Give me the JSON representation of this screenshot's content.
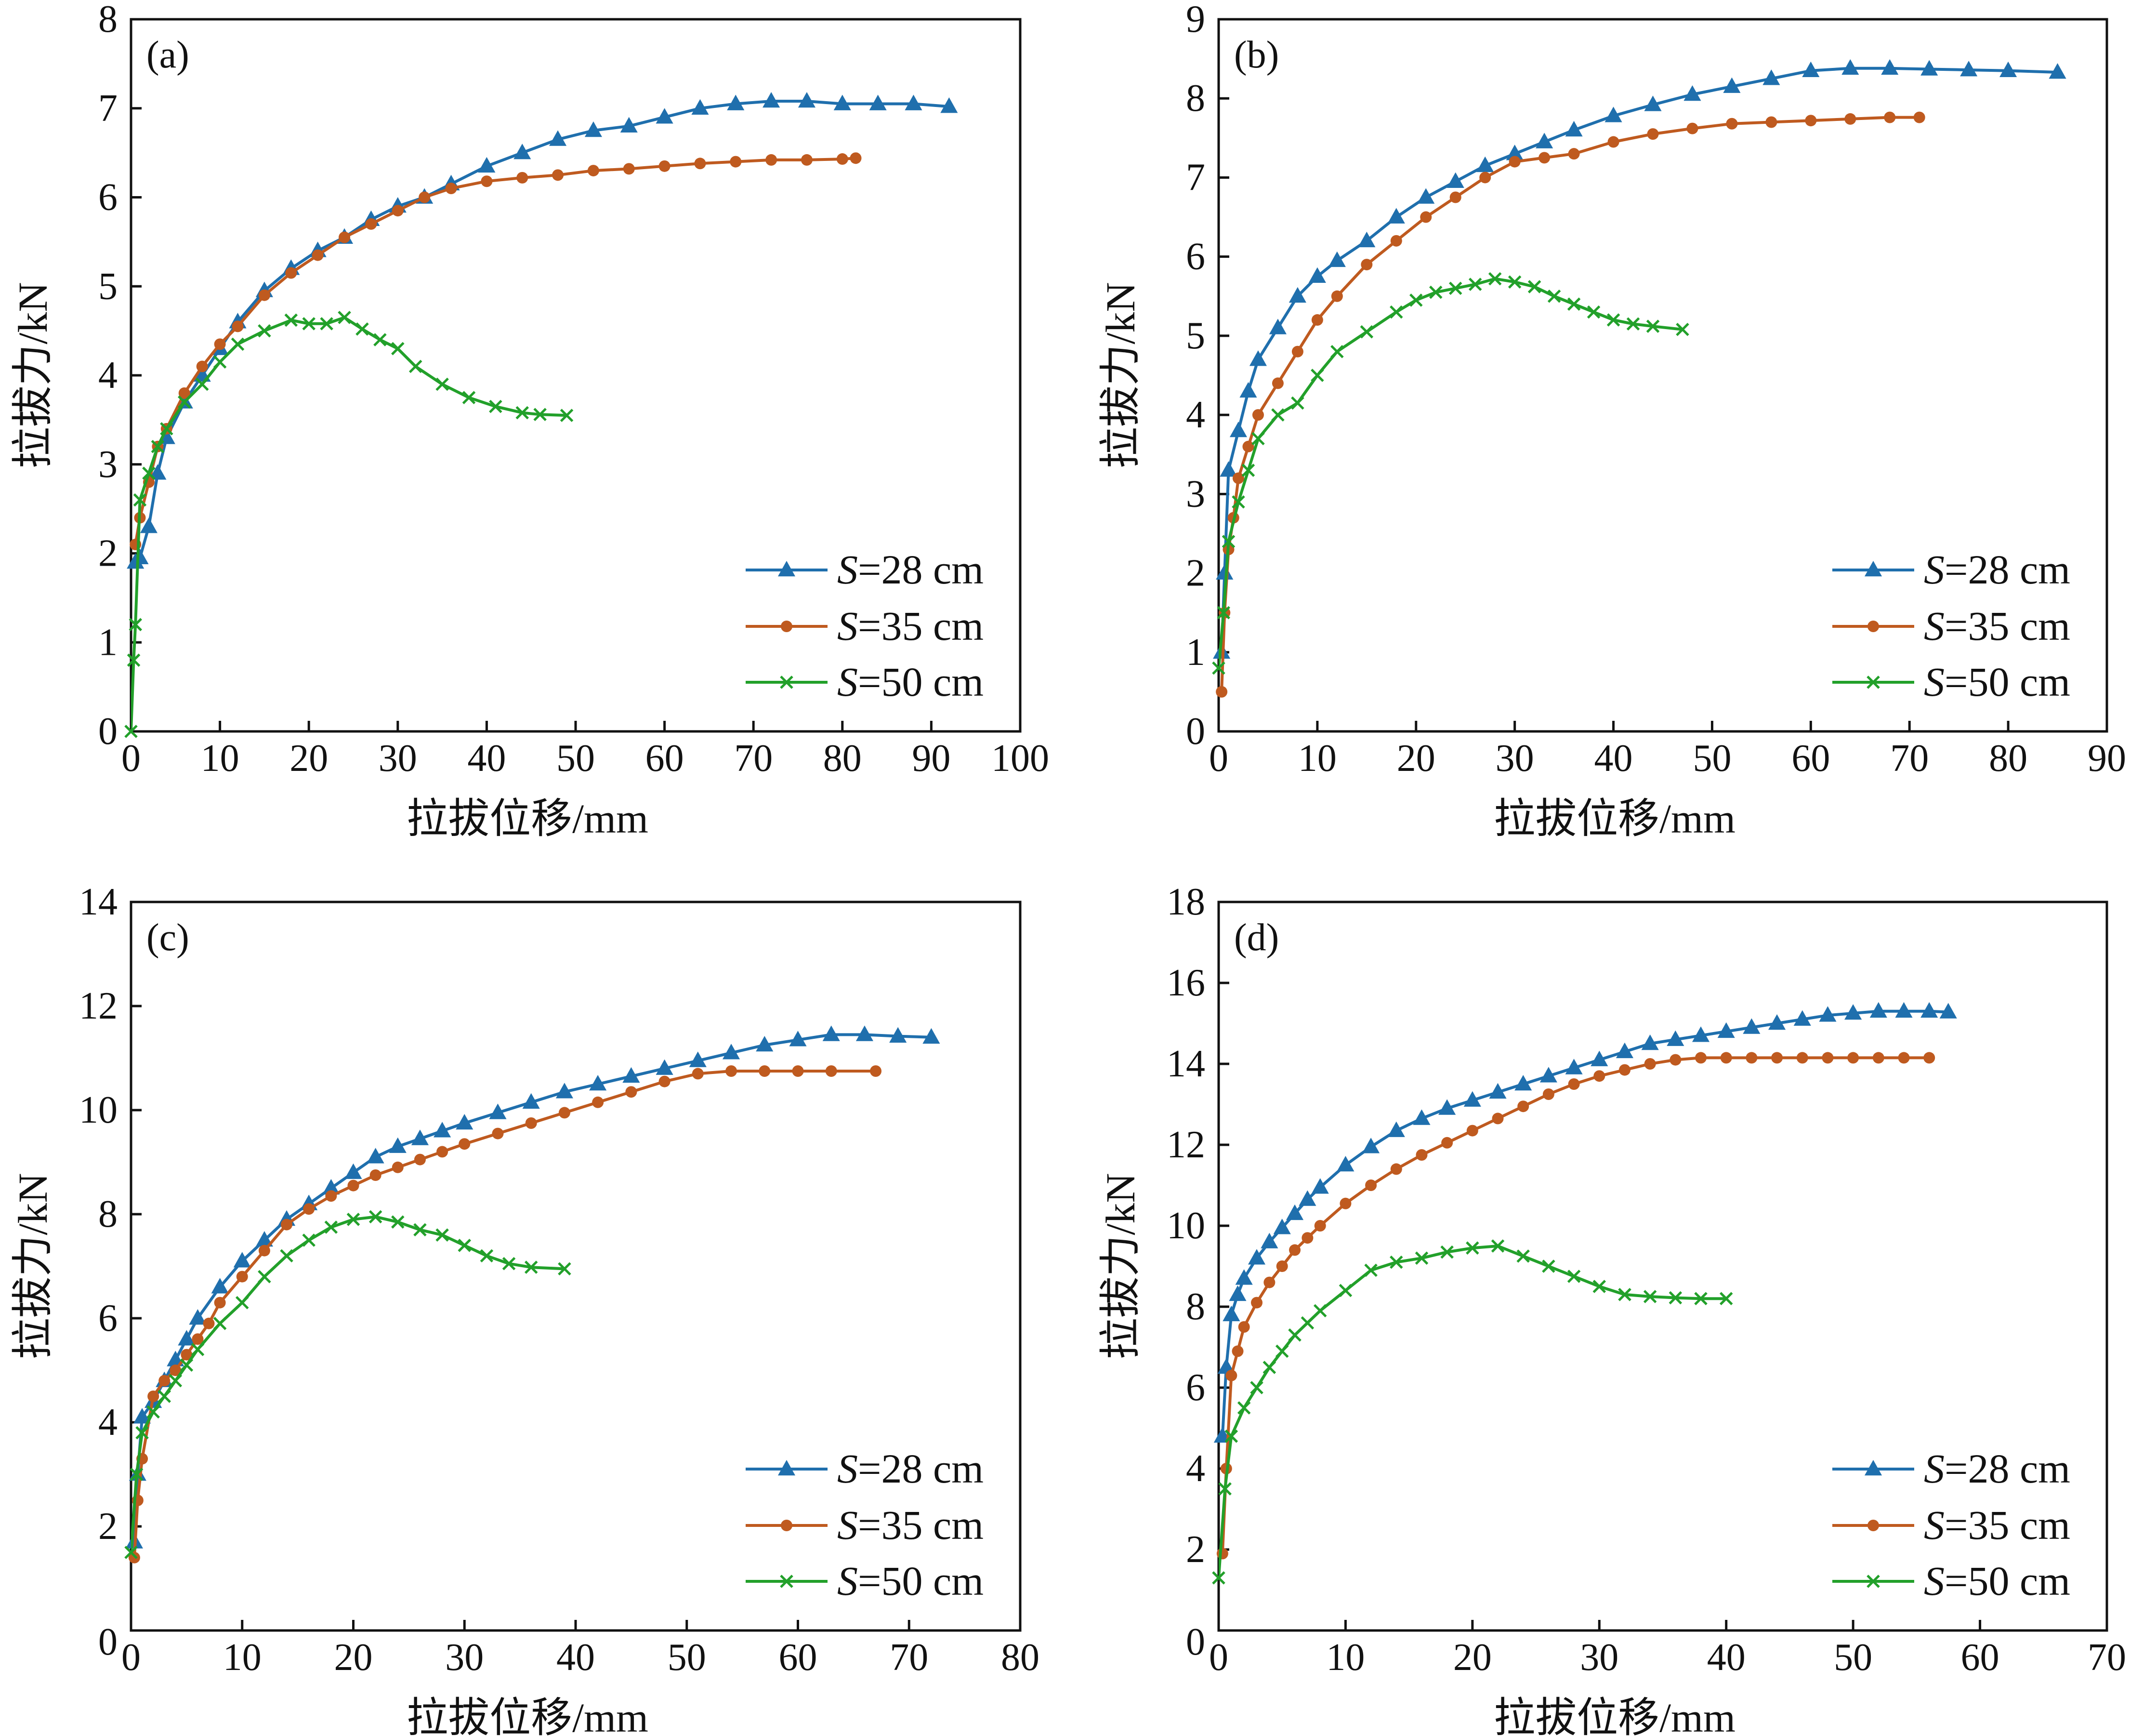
{
  "figure": {
    "colors": {
      "s28": "#1f6fad",
      "s35": "#bf5a1f",
      "s50": "#22a02a",
      "axis": "#111111"
    },
    "legend_prefix": "S",
    "marker_map": {
      "s28": "triangle-icon",
      "s35": "circle-icon",
      "s50": "cross-icon"
    }
  },
  "chart_data": [
    {
      "type": "line",
      "panel_label": "(a)",
      "xlabel": "拉拔位移/mm",
      "ylabel": "拉拔力/kN",
      "xlim": [
        0,
        100
      ],
      "ylim": [
        0,
        8
      ],
      "xticks": [
        0,
        10,
        20,
        30,
        40,
        50,
        60,
        70,
        80,
        90,
        100
      ],
      "yticks": [
        0,
        1,
        2,
        3,
        4,
        5,
        6,
        7,
        8
      ],
      "legend_position": "bottom-right",
      "series": [
        {
          "key": "s28",
          "name": "S=28 cm",
          "legend_value": "=28 cm",
          "marker": "triangle",
          "x": [
            0.5,
            1,
            2,
            3,
            4,
            6,
            8,
            10,
            12,
            15,
            18,
            21,
            24,
            27,
            30,
            33,
            36,
            40,
            44,
            48,
            52,
            56,
            60,
            64,
            68,
            72,
            76,
            80,
            84,
            88,
            92
          ],
          "y": [
            1.9,
            1.95,
            2.3,
            2.9,
            3.3,
            3.7,
            4.0,
            4.3,
            4.6,
            4.95,
            5.2,
            5.4,
            5.55,
            5.75,
            5.9,
            6.0,
            6.15,
            6.35,
            6.5,
            6.65,
            6.75,
            6.8,
            6.9,
            7.0,
            7.05,
            7.08,
            7.08,
            7.05,
            7.05,
            7.05,
            7.02
          ]
        },
        {
          "key": "s35",
          "name": "S=35 cm",
          "legend_value": "=35 cm",
          "marker": "circle",
          "x": [
            0.5,
            1,
            2,
            3,
            4,
            6,
            8,
            10,
            12,
            15,
            18,
            21,
            24,
            27,
            30,
            33,
            36,
            40,
            44,
            48,
            52,
            56,
            60,
            64,
            68,
            72,
            76,
            80,
            81.5
          ],
          "y": [
            2.1,
            2.4,
            2.8,
            3.2,
            3.4,
            3.8,
            4.1,
            4.35,
            4.55,
            4.9,
            5.15,
            5.35,
            5.55,
            5.7,
            5.85,
            6.0,
            6.1,
            6.18,
            6.22,
            6.25,
            6.3,
            6.32,
            6.35,
            6.38,
            6.4,
            6.42,
            6.42,
            6.43,
            6.44
          ]
        },
        {
          "key": "s50",
          "name": "S=50 cm",
          "legend_value": "=50 cm",
          "marker": "cross",
          "x": [
            0,
            0.3,
            0.5,
            1,
            2,
            3,
            4,
            6,
            8,
            10,
            12,
            15,
            18,
            20,
            22,
            24,
            26,
            28,
            30,
            32,
            35,
            38,
            41,
            44,
            46,
            49
          ],
          "y": [
            0.0,
            0.8,
            1.2,
            2.6,
            2.9,
            3.2,
            3.4,
            3.7,
            3.9,
            4.15,
            4.35,
            4.5,
            4.62,
            4.58,
            4.58,
            4.65,
            4.52,
            4.4,
            4.3,
            4.1,
            3.9,
            3.75,
            3.65,
            3.58,
            3.56,
            3.55
          ]
        }
      ]
    },
    {
      "type": "line",
      "panel_label": "(b)",
      "xlabel": "拉拔位移/mm",
      "ylabel": "拉拔力/kN",
      "xlim": [
        0,
        90
      ],
      "ylim": [
        0,
        9
      ],
      "xticks": [
        0,
        10,
        20,
        30,
        40,
        50,
        60,
        70,
        80,
        90
      ],
      "yticks": [
        0,
        1,
        2,
        3,
        4,
        5,
        6,
        7,
        8,
        9
      ],
      "legend_position": "bottom-right",
      "series": [
        {
          "key": "s28",
          "name": "S=28 cm",
          "legend_value": "=28 cm",
          "marker": "triangle",
          "x": [
            0.3,
            0.6,
            1,
            2,
            3,
            4,
            6,
            8,
            10,
            12,
            15,
            18,
            21,
            24,
            27,
            30,
            33,
            36,
            40,
            44,
            48,
            52,
            56,
            60,
            64,
            68,
            72,
            76,
            80,
            85
          ],
          "y": [
            1.0,
            2.0,
            3.3,
            3.8,
            4.3,
            4.7,
            5.1,
            5.5,
            5.75,
            5.95,
            6.2,
            6.5,
            6.75,
            6.95,
            7.15,
            7.3,
            7.45,
            7.6,
            7.78,
            7.92,
            8.05,
            8.15,
            8.25,
            8.35,
            8.38,
            8.38,
            8.37,
            8.36,
            8.35,
            8.33
          ]
        },
        {
          "key": "s35",
          "name": "S=35 cm",
          "legend_value": "=35 cm",
          "marker": "circle",
          "x": [
            0.3,
            0.6,
            1,
            1.5,
            2,
            3,
            4,
            6,
            8,
            10,
            12,
            15,
            18,
            21,
            24,
            27,
            30,
            33,
            36,
            40,
            44,
            48,
            52,
            56,
            60,
            64,
            68,
            71
          ],
          "y": [
            0.5,
            1.5,
            2.3,
            2.7,
            3.2,
            3.6,
            4.0,
            4.4,
            4.8,
            5.2,
            5.5,
            5.9,
            6.2,
            6.5,
            6.75,
            7.0,
            7.2,
            7.25,
            7.3,
            7.45,
            7.55,
            7.62,
            7.68,
            7.7,
            7.72,
            7.74,
            7.76,
            7.76
          ]
        },
        {
          "key": "s50",
          "name": "S=50 cm",
          "legend_value": "=50 cm",
          "marker": "cross",
          "x": [
            0,
            0.5,
            1,
            2,
            3,
            4,
            6,
            8,
            10,
            12,
            15,
            18,
            20,
            22,
            24,
            26,
            28,
            30,
            32,
            34,
            36,
            38,
            40,
            42,
            44,
            47
          ],
          "y": [
            0.8,
            1.5,
            2.4,
            2.9,
            3.3,
            3.7,
            4.0,
            4.15,
            4.5,
            4.8,
            5.05,
            5.3,
            5.45,
            5.55,
            5.6,
            5.65,
            5.72,
            5.68,
            5.62,
            5.5,
            5.4,
            5.3,
            5.2,
            5.15,
            5.12,
            5.08
          ]
        }
      ]
    },
    {
      "type": "line",
      "panel_label": "(c)",
      "xlabel": "拉拔位移/mm",
      "ylabel": "拉拔力/kN",
      "xlim": [
        0,
        80
      ],
      "ylim": [
        0,
        14
      ],
      "xticks": [
        0,
        10,
        20,
        30,
        40,
        50,
        60,
        70,
        80
      ],
      "yticks": [
        2,
        4,
        6,
        8,
        10,
        12,
        14
      ],
      "legend_position": "bottom-right",
      "series": [
        {
          "key": "s28",
          "name": "S=28 cm",
          "legend_value": "=28 cm",
          "marker": "triangle",
          "x": [
            0.3,
            0.6,
            1,
            2,
            3,
            4,
            5,
            6,
            8,
            10,
            12,
            14,
            16,
            18,
            20,
            22,
            24,
            26,
            28,
            30,
            33,
            36,
            39,
            42,
            45,
            48,
            51,
            54,
            57,
            60,
            63,
            66,
            69,
            72
          ],
          "y": [
            1.7,
            3.0,
            4.1,
            4.4,
            4.8,
            5.2,
            5.6,
            6.0,
            6.6,
            7.1,
            7.5,
            7.9,
            8.2,
            8.5,
            8.8,
            9.1,
            9.3,
            9.45,
            9.6,
            9.75,
            9.95,
            10.15,
            10.35,
            10.5,
            10.65,
            10.8,
            10.95,
            11.1,
            11.25,
            11.35,
            11.45,
            11.45,
            11.42,
            11.4
          ]
        },
        {
          "key": "s35",
          "name": "S=35 cm",
          "legend_value": "=35 cm",
          "marker": "circle",
          "x": [
            0.3,
            0.6,
            1,
            2,
            3,
            4,
            5,
            6,
            7,
            8,
            10,
            12,
            14,
            16,
            18,
            20,
            22,
            24,
            26,
            28,
            30,
            33,
            36,
            39,
            42,
            45,
            48,
            51,
            54,
            57,
            60,
            63,
            67
          ],
          "y": [
            1.4,
            2.5,
            3.3,
            4.5,
            4.8,
            5.0,
            5.3,
            5.6,
            5.9,
            6.3,
            6.8,
            7.3,
            7.8,
            8.1,
            8.35,
            8.55,
            8.75,
            8.9,
            9.05,
            9.2,
            9.35,
            9.55,
            9.75,
            9.95,
            10.15,
            10.35,
            10.55,
            10.7,
            10.75,
            10.75,
            10.75,
            10.75,
            10.75
          ]
        },
        {
          "key": "s50",
          "name": "S=50 cm",
          "legend_value": "=50 cm",
          "marker": "cross",
          "x": [
            0,
            0.5,
            1,
            2,
            3,
            4,
            5,
            6,
            8,
            10,
            12,
            14,
            16,
            18,
            20,
            22,
            24,
            26,
            28,
            30,
            32,
            34,
            36,
            39
          ],
          "y": [
            1.5,
            3.0,
            3.8,
            4.2,
            4.5,
            4.8,
            5.1,
            5.4,
            5.9,
            6.3,
            6.8,
            7.2,
            7.5,
            7.75,
            7.9,
            7.95,
            7.85,
            7.7,
            7.6,
            7.4,
            7.2,
            7.05,
            6.98,
            6.95
          ]
        }
      ]
    },
    {
      "type": "line",
      "panel_label": "(d)",
      "xlabel": "拉拔位移/mm",
      "ylabel": "拉拔力/kN",
      "xlim": [
        0,
        70
      ],
      "ylim": [
        0,
        18
      ],
      "xticks": [
        0,
        10,
        20,
        30,
        40,
        50,
        60,
        70
      ],
      "yticks": [
        2,
        4,
        6,
        8,
        10,
        12,
        14,
        16,
        18
      ],
      "legend_position": "bottom-right",
      "series": [
        {
          "key": "s28",
          "name": "S=28 cm",
          "legend_value": "=28 cm",
          "marker": "triangle",
          "x": [
            0.3,
            0.6,
            1,
            1.5,
            2,
            3,
            4,
            5,
            6,
            7,
            8,
            10,
            12,
            14,
            16,
            18,
            20,
            22,
            24,
            26,
            28,
            30,
            32,
            34,
            36,
            38,
            40,
            42,
            44,
            46,
            48,
            50,
            52,
            54,
            56,
            57.5
          ],
          "y": [
            4.8,
            6.5,
            7.8,
            8.3,
            8.7,
            9.2,
            9.6,
            9.95,
            10.3,
            10.65,
            10.95,
            11.5,
            11.95,
            12.35,
            12.65,
            12.9,
            13.1,
            13.3,
            13.5,
            13.7,
            13.9,
            14.1,
            14.3,
            14.5,
            14.6,
            14.7,
            14.8,
            14.9,
            15.0,
            15.1,
            15.2,
            15.25,
            15.3,
            15.3,
            15.3,
            15.28
          ]
        },
        {
          "key": "s35",
          "name": "S=35 cm",
          "legend_value": "=35 cm",
          "marker": "circle",
          "x": [
            0.3,
            0.6,
            1,
            1.5,
            2,
            3,
            4,
            5,
            6,
            7,
            8,
            10,
            12,
            14,
            16,
            18,
            20,
            22,
            24,
            26,
            28,
            30,
            32,
            34,
            36,
            38,
            40,
            42,
            44,
            46,
            48,
            50,
            52,
            54,
            56
          ],
          "y": [
            1.9,
            4.0,
            6.3,
            6.9,
            7.5,
            8.1,
            8.6,
            9.0,
            9.4,
            9.7,
            10.0,
            10.55,
            11.0,
            11.4,
            11.75,
            12.05,
            12.35,
            12.65,
            12.95,
            13.25,
            13.5,
            13.7,
            13.85,
            14.0,
            14.1,
            14.15,
            14.15,
            14.15,
            14.15,
            14.15,
            14.15,
            14.15,
            14.15,
            14.15,
            14.15
          ]
        },
        {
          "key": "s50",
          "name": "S=50 cm",
          "legend_value": "=50 cm",
          "marker": "cross",
          "x": [
            0,
            0.5,
            1,
            2,
            3,
            4,
            5,
            6,
            7,
            8,
            10,
            12,
            14,
            16,
            18,
            20,
            22,
            24,
            26,
            28,
            30,
            32,
            34,
            36,
            38,
            40
          ],
          "y": [
            1.3,
            3.5,
            4.8,
            5.5,
            6.0,
            6.5,
            6.9,
            7.3,
            7.6,
            7.9,
            8.4,
            8.9,
            9.1,
            9.2,
            9.35,
            9.45,
            9.5,
            9.25,
            9.0,
            8.75,
            8.5,
            8.3,
            8.25,
            8.22,
            8.2,
            8.2
          ]
        }
      ]
    }
  ]
}
